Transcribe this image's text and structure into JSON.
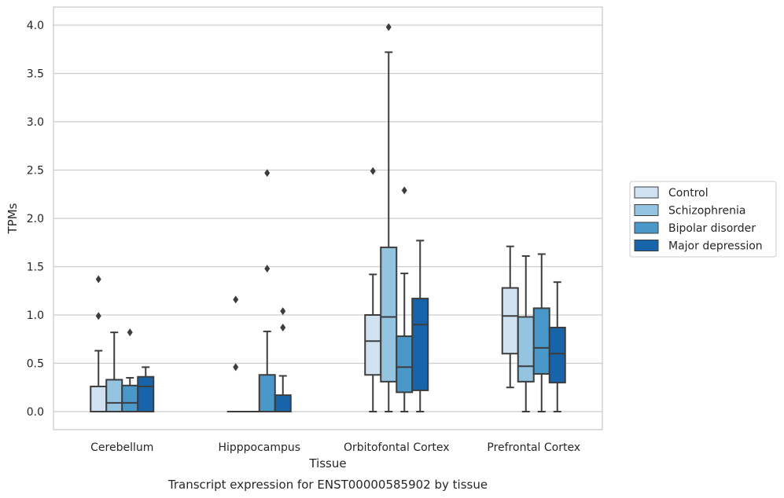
{
  "chart_data": {
    "type": "box",
    "title": "Transcript expression for ENST00000585902 by tissue",
    "xlabel": "Tissue",
    "ylabel": "TPMs",
    "ylim": [
      -0.19,
      4.19
    ],
    "yticks": [
      0.0,
      0.5,
      1.0,
      1.5,
      2.0,
      2.5,
      3.0,
      3.5,
      4.0
    ],
    "ytick_labels": [
      "0.0",
      "0.5",
      "1.0",
      "1.5",
      "2.0",
      "2.5",
      "3.0",
      "3.5",
      "4.0"
    ],
    "grid": "horizontal",
    "legend_position": "right",
    "categories": [
      "Cerebellum",
      "Hipppocampus",
      "Orbitofontal Cortex",
      "Prefrontal Cortex"
    ],
    "series": [
      {
        "name": "Control",
        "color": "#d0e1f2",
        "boxes": [
          {
            "whislo": 0.0,
            "q1": 0.0,
            "med": 0.0,
            "q3": 0.26,
            "whishi": 0.63,
            "fliers": [
              0.99,
              1.37
            ]
          },
          {
            "whislo": 0.0,
            "q1": 0.0,
            "med": 0.0,
            "q3": 0.0,
            "whishi": 0.0,
            "fliers": [
              0.46,
              1.16
            ]
          },
          {
            "whislo": 0.0,
            "q1": 0.38,
            "med": 0.73,
            "q3": 1.0,
            "whishi": 1.42,
            "fliers": [
              2.49
            ]
          },
          {
            "whislo": 0.25,
            "q1": 0.6,
            "med": 0.99,
            "q3": 1.28,
            "whishi": 1.71,
            "fliers": []
          }
        ]
      },
      {
        "name": "Schizophrenia",
        "color": "#94c4df",
        "boxes": [
          {
            "whislo": 0.0,
            "q1": 0.0,
            "med": 0.09,
            "q3": 0.33,
            "whishi": 0.82,
            "fliers": []
          },
          {
            "whislo": 0.0,
            "q1": 0.0,
            "med": 0.0,
            "q3": 0.0,
            "whishi": 0.0,
            "fliers": []
          },
          {
            "whislo": 0.0,
            "q1": 0.31,
            "med": 0.98,
            "q3": 1.7,
            "whishi": 3.72,
            "fliers": [
              3.98
            ]
          },
          {
            "whislo": 0.0,
            "q1": 0.31,
            "med": 0.47,
            "q3": 0.98,
            "whishi": 1.61,
            "fliers": []
          }
        ]
      },
      {
        "name": "Bipolar disorder",
        "color": "#4a98c9",
        "boxes": [
          {
            "whislo": 0.0,
            "q1": 0.0,
            "med": 0.09,
            "q3": 0.27,
            "whishi": 0.35,
            "fliers": [
              0.82
            ]
          },
          {
            "whislo": 0.0,
            "q1": 0.0,
            "med": 0.0,
            "q3": 0.38,
            "whishi": 0.83,
            "fliers": [
              1.48,
              2.47
            ]
          },
          {
            "whislo": 0.0,
            "q1": 0.2,
            "med": 0.46,
            "q3": 0.78,
            "whishi": 1.43,
            "fliers": [
              2.29
            ]
          },
          {
            "whislo": 0.0,
            "q1": 0.39,
            "med": 0.66,
            "q3": 1.07,
            "whishi": 1.63,
            "fliers": []
          }
        ]
      },
      {
        "name": "Major depression",
        "color": "#1764ab",
        "boxes": [
          {
            "whislo": 0.0,
            "q1": 0.0,
            "med": 0.26,
            "q3": 0.36,
            "whishi": 0.46,
            "fliers": []
          },
          {
            "whislo": 0.0,
            "q1": 0.0,
            "med": 0.0,
            "q3": 0.17,
            "whishi": 0.37,
            "fliers": [
              0.87,
              1.04
            ]
          },
          {
            "whislo": 0.0,
            "q1": 0.22,
            "med": 0.9,
            "q3": 1.17,
            "whishi": 1.77,
            "fliers": []
          },
          {
            "whislo": 0.0,
            "q1": 0.3,
            "med": 0.6,
            "q3": 0.87,
            "whishi": 1.34,
            "fliers": []
          }
        ]
      }
    ]
  }
}
